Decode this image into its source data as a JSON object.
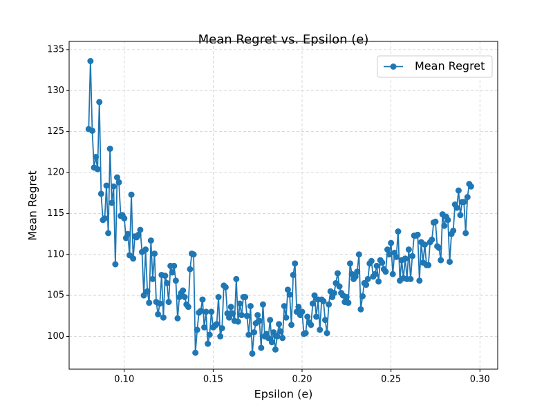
{
  "chart_data": {
    "type": "line",
    "title": "Mean Regret vs. Epsilon (e)",
    "xlabel": "Epsilon (e)",
    "ylabel": "Mean Regret",
    "x": [
      0.08,
      0.081,
      0.082,
      0.083,
      0.084,
      0.085,
      0.086,
      0.087,
      0.088,
      0.089,
      0.09,
      0.091,
      0.092,
      0.093,
      0.094,
      0.095,
      0.096,
      0.097,
      0.098,
      0.099,
      0.1,
      0.101,
      0.102,
      0.103,
      0.104,
      0.105,
      0.106,
      0.107,
      0.108,
      0.109,
      0.11,
      0.111,
      0.112,
      0.113,
      0.114,
      0.115,
      0.116,
      0.117,
      0.118,
      0.119,
      0.12,
      0.121,
      0.122,
      0.123,
      0.124,
      0.125,
      0.126,
      0.127,
      0.128,
      0.129,
      0.13,
      0.131,
      0.132,
      0.133,
      0.134,
      0.135,
      0.136,
      0.137,
      0.138,
      0.139,
      0.14,
      0.141,
      0.142,
      0.143,
      0.144,
      0.145,
      0.146,
      0.147,
      0.148,
      0.149,
      0.15,
      0.151,
      0.152,
      0.153,
      0.154,
      0.155,
      0.156,
      0.157,
      0.158,
      0.159,
      0.16,
      0.161,
      0.162,
      0.163,
      0.164,
      0.165,
      0.166,
      0.167,
      0.168,
      0.169,
      0.17,
      0.171,
      0.172,
      0.173,
      0.174,
      0.175,
      0.176,
      0.177,
      0.178,
      0.179,
      0.18,
      0.181,
      0.182,
      0.183,
      0.184,
      0.185,
      0.186,
      0.187,
      0.188,
      0.189,
      0.19,
      0.191,
      0.192,
      0.193,
      0.194,
      0.195,
      0.196,
      0.197,
      0.198,
      0.199,
      0.2,
      0.201,
      0.202,
      0.203,
      0.204,
      0.205,
      0.206,
      0.207,
      0.208,
      0.209,
      0.21,
      0.211,
      0.212,
      0.213,
      0.214,
      0.215,
      0.216,
      0.217,
      0.218,
      0.219,
      0.22,
      0.221,
      0.222,
      0.223,
      0.224,
      0.225,
      0.226,
      0.227,
      0.228,
      0.229,
      0.23,
      0.231,
      0.232,
      0.233,
      0.234,
      0.235,
      0.236,
      0.237,
      0.238,
      0.239,
      0.24,
      0.241,
      0.242,
      0.243,
      0.244,
      0.245,
      0.246,
      0.247,
      0.248,
      0.249,
      0.25,
      0.251,
      0.252,
      0.253,
      0.254,
      0.255,
      0.256,
      0.257,
      0.258,
      0.259,
      0.26,
      0.261,
      0.262,
      0.263,
      0.264,
      0.265,
      0.266,
      0.267,
      0.268,
      0.269,
      0.27,
      0.271,
      0.272,
      0.273,
      0.274,
      0.275,
      0.276,
      0.277,
      0.278,
      0.279,
      0.28,
      0.281,
      0.282,
      0.283,
      0.284,
      0.285,
      0.286,
      0.287,
      0.288,
      0.289,
      0.29,
      0.291,
      0.292,
      0.293,
      0.294,
      0.295
    ],
    "series": [
      {
        "name": "Mean Regret",
        "color": "#1f77b4",
        "values": [
          125.3,
          133.6,
          125.1,
          120.6,
          121.9,
          120.4,
          128.6,
          117.4,
          114.2,
          114.4,
          118.4,
          112.6,
          122.9,
          116.3,
          118.3,
          108.8,
          119.4,
          118.8,
          114.7,
          114.8,
          114.4,
          112.0,
          112.5,
          109.9,
          117.3,
          109.5,
          112.2,
          112.1,
          112.4,
          113.0,
          110.3,
          105.0,
          110.6,
          105.5,
          104.1,
          111.7,
          107.0,
          110.1,
          104.2,
          102.7,
          104.0,
          107.5,
          102.3,
          107.4,
          106.5,
          104.2,
          108.6,
          107.8,
          108.6,
          106.8,
          102.2,
          104.8,
          105.3,
          105.6,
          104.8,
          103.9,
          103.6,
          108.2,
          110.1,
          110.0,
          98.0,
          100.8,
          102.9,
          103.1,
          104.5,
          101.1,
          103.0,
          99.1,
          100.2,
          103.0,
          101.1,
          101.3,
          101.5,
          104.8,
          100.0,
          101.0,
          106.2,
          106.0,
          102.8,
          102.3,
          103.6,
          102.8,
          101.9,
          107.0,
          101.8,
          104.0,
          102.6,
          104.8,
          104.8,
          102.5,
          100.2,
          103.7,
          97.9,
          100.5,
          101.6,
          102.6,
          101.9,
          98.6,
          103.9,
          100.0,
          100.3,
          99.8,
          102.0,
          99.3,
          100.5,
          98.4,
          100.0,
          101.5,
          100.6,
          99.8,
          103.7,
          102.3,
          105.7,
          105.1,
          101.4,
          107.5,
          108.9,
          103.0,
          103.6,
          102.6,
          103.0,
          100.3,
          100.4,
          102.4,
          101.7,
          101.4,
          104.0,
          105.0,
          102.4,
          104.5,
          100.8,
          104.5,
          104.3,
          102.0,
          100.4,
          103.9,
          105.5,
          104.8,
          105.3,
          106.5,
          107.7,
          106.1,
          105.3,
          105.0,
          104.2,
          104.8,
          104.1,
          108.9,
          107.6,
          107.0,
          107.3,
          107.9,
          110.0,
          103.3,
          104.9,
          106.5,
          106.3,
          107.0,
          108.9,
          109.2,
          107.3,
          107.6,
          108.6,
          106.7,
          109.3,
          109.0,
          108.2,
          107.9,
          110.6,
          110.0,
          111.4,
          107.6,
          110.2,
          109.7,
          112.8,
          106.8,
          109.3,
          107.1,
          109.5,
          107.0,
          110.6,
          107.0,
          109.8,
          112.3,
          112.3,
          112.4,
          106.8,
          111.5,
          109.0,
          111.2,
          108.7,
          108.7,
          111.5,
          111.8,
          113.9,
          114.0,
          111.0,
          110.8,
          109.3,
          114.9,
          113.5,
          114.6,
          114.2,
          109.1,
          112.5,
          112.9,
          116.1,
          115.7,
          117.8,
          114.8,
          116.4,
          116.4,
          112.6,
          117.0,
          118.6,
          118.3
        ]
      }
    ],
    "xlim": [
      0.069,
      0.31
    ],
    "ylim": [
      96,
      136
    ],
    "xticks": [
      {
        "value": 0.1,
        "label": "0.10"
      },
      0.15,
      {
        "value": 0.2,
        "label": "0.20"
      },
      0.25,
      {
        "value": 0.3,
        "label": "0.30"
      }
    ],
    "yticks": [
      100,
      105,
      110,
      115,
      120,
      125,
      130,
      135
    ],
    "grid": true,
    "legend": "upper right"
  }
}
